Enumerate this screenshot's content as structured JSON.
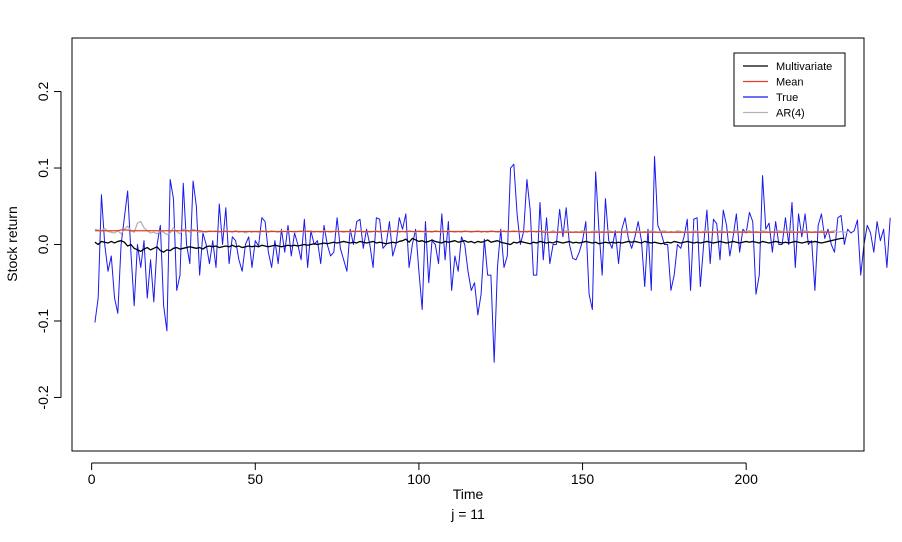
{
  "chart_data": {
    "type": "line",
    "xlabel": "Time",
    "subtitle": "j = 11",
    "ylabel": "Stock return",
    "xlim": [
      -6,
      236
    ],
    "ylim": [
      -0.27,
      0.27
    ],
    "x_ticks": [
      0,
      50,
      100,
      150,
      200
    ],
    "x_tick_labels": [
      "0",
      "50",
      "100",
      "150",
      "200"
    ],
    "y_ticks": [
      -0.2,
      -0.1,
      0.0,
      0.1,
      0.2
    ],
    "y_tick_labels": [
      "-0.2",
      "-0.1",
      "0.0",
      "0.1",
      "0.2"
    ],
    "legend_position": "top-right",
    "colors": {
      "multivariate": "#000000",
      "mean": "#e0402a",
      "true": "#1a1aee",
      "ar4": "#b3b3b3"
    },
    "series": [
      {
        "name": "Multivariate",
        "color": "#000000",
        "x_start": 1,
        "values": [
          0.003,
          0.0,
          0.004,
          0.003,
          0.002,
          0.004,
          0.002,
          0.004,
          0.005,
          0.003,
          -0.002,
          0.0,
          -0.005,
          -0.007,
          -0.009,
          -0.006,
          -0.004,
          -0.007,
          -0.005,
          -0.003,
          -0.008,
          -0.01,
          -0.007,
          -0.008,
          -0.005,
          -0.004,
          -0.006,
          -0.005,
          -0.004,
          -0.003,
          -0.004,
          -0.005,
          -0.004,
          -0.006,
          -0.003,
          -0.002,
          -0.003,
          -0.002,
          -0.004,
          -0.003,
          -0.002,
          -0.003,
          -0.001,
          -0.003,
          -0.002,
          -0.004,
          -0.003,
          -0.002,
          -0.003,
          -0.002,
          -0.003,
          -0.001,
          -0.002,
          -0.003,
          -0.002,
          -0.001,
          -0.002,
          -0.003,
          -0.002,
          -0.001,
          -0.002,
          -0.001,
          -0.002,
          -0.001,
          0.0,
          -0.001,
          0.0,
          0.001,
          0.0,
          0.001,
          0.002,
          0.001,
          0.002,
          0.003,
          0.002,
          0.003,
          0.004,
          0.003,
          0.002,
          0.003,
          0.002,
          0.004,
          0.003,
          0.002,
          0.003,
          0.004,
          0.002,
          0.003,
          0.002,
          0.001,
          0.002,
          0.003,
          0.002,
          0.004,
          0.005,
          0.007,
          0.003,
          0.008,
          0.006,
          0.004,
          0.005,
          0.003,
          0.004,
          0.006,
          0.004,
          0.003,
          0.002,
          0.004,
          0.003,
          0.004,
          0.005,
          0.003,
          0.004,
          0.005,
          0.003,
          0.004,
          0.002,
          0.004,
          0.003,
          0.004,
          0.006,
          0.003,
          0.004,
          0.005,
          0.003,
          0.002,
          0.001,
          0.0,
          0.003,
          0.002,
          0.004,
          0.003,
          0.002,
          0.001,
          0.003,
          0.002,
          0.004,
          0.003,
          0.002,
          0.003,
          0.002,
          0.004,
          0.003,
          0.002,
          0.003,
          0.004,
          0.002,
          0.003,
          0.002,
          0.003,
          0.004,
          0.003,
          0.002,
          0.003,
          0.001,
          0.002,
          0.003,
          0.002,
          0.003,
          0.002,
          0.003,
          0.002,
          0.003,
          0.004,
          0.003,
          0.004,
          0.003,
          0.002,
          0.004,
          0.003,
          0.002,
          0.003,
          0.002,
          0.001,
          0.002,
          0.003,
          0.002,
          0.004,
          0.003,
          0.002,
          0.003,
          0.004,
          0.003,
          0.002,
          0.003,
          0.002,
          0.003,
          0.004,
          0.003,
          0.002,
          0.003,
          0.004,
          0.003,
          0.002,
          0.003,
          0.004,
          0.003,
          0.002,
          0.003,
          0.004,
          0.003,
          0.004,
          0.003,
          0.002,
          0.004,
          0.003,
          0.002,
          0.003,
          0.004,
          0.003,
          0.002,
          0.003,
          0.002,
          0.003,
          0.004,
          0.003,
          0.002,
          0.003,
          0.004,
          0.003,
          0.004,
          0.003,
          0.002,
          0.003,
          0.004,
          0.005,
          0.006,
          0.007,
          0.008,
          0.008
        ]
      },
      {
        "name": "Mean",
        "color": "#e0402a",
        "x_start": 1,
        "values": [
          0.018,
          0.018,
          0.018,
          0.018,
          0.018,
          0.018,
          0.018,
          0.018,
          0.019,
          0.019,
          0.019,
          0.018,
          0.018,
          0.018,
          0.018,
          0.018,
          0.018,
          0.018,
          0.018,
          0.018,
          0.018,
          0.018,
          0.018,
          0.018,
          0.018,
          0.018,
          0.018,
          0.018,
          0.018,
          0.018,
          0.018,
          0.018,
          0.018,
          0.017,
          0.017,
          0.017,
          0.017,
          0.017,
          0.017,
          0.017,
          0.017,
          0.017,
          0.017,
          0.017,
          0.017,
          0.017,
          0.017,
          0.017,
          0.017,
          0.017,
          0.017,
          0.017,
          0.017,
          0.017,
          0.017,
          0.017,
          0.017,
          0.017,
          0.017,
          0.017,
          0.017,
          0.017,
          0.017,
          0.017,
          0.017,
          0.017,
          0.017,
          0.017,
          0.017,
          0.017,
          0.017,
          0.017,
          0.017,
          0.017,
          0.017,
          0.017,
          0.017,
          0.017,
          0.017,
          0.017,
          0.017,
          0.017,
          0.017,
          0.017,
          0.017,
          0.017,
          0.017,
          0.017,
          0.017,
          0.017,
          0.017,
          0.017,
          0.017,
          0.017,
          0.017,
          0.017,
          0.017,
          0.017,
          0.017,
          0.017,
          0.017,
          0.017,
          0.017,
          0.017,
          0.017,
          0.017,
          0.017,
          0.017,
          0.017,
          0.017,
          0.017,
          0.017,
          0.017,
          0.017,
          0.017,
          0.017,
          0.017,
          0.017,
          0.017,
          0.017,
          0.017,
          0.017,
          0.017,
          0.017,
          0.017,
          0.017,
          0.017,
          0.017,
          0.017,
          0.017,
          0.017,
          0.017,
          0.017,
          0.017,
          0.017,
          0.017,
          0.017,
          0.016,
          0.016,
          0.016,
          0.016,
          0.016,
          0.016,
          0.016,
          0.016,
          0.016,
          0.016,
          0.016,
          0.016,
          0.016,
          0.016,
          0.016,
          0.016,
          0.016,
          0.016,
          0.016,
          0.016,
          0.016,
          0.016,
          0.016,
          0.016,
          0.016,
          0.016,
          0.016,
          0.016,
          0.016,
          0.016,
          0.016,
          0.016,
          0.016,
          0.016,
          0.016,
          0.016,
          0.016,
          0.016,
          0.016,
          0.016,
          0.016,
          0.016,
          0.016,
          0.016,
          0.016,
          0.016,
          0.016,
          0.016,
          0.016,
          0.016,
          0.016,
          0.016,
          0.016,
          0.016,
          0.016,
          0.016,
          0.016,
          0.016,
          0.016,
          0.016,
          0.016,
          0.016,
          0.016,
          0.016,
          0.016,
          0.016,
          0.016,
          0.016,
          0.016,
          0.016,
          0.016,
          0.016,
          0.016,
          0.016,
          0.016,
          0.016,
          0.016,
          0.016,
          0.016,
          0.016,
          0.016,
          0.016,
          0.016,
          0.016,
          0.016,
          0.016,
          0.016,
          0.016,
          0.016,
          0.016
        ]
      },
      {
        "name": "True",
        "color": "#1a1aee",
        "x_start": 1,
        "values": [
          -0.102,
          -0.07,
          0.065,
          0.0,
          -0.035,
          -0.015,
          -0.07,
          -0.09,
          0.0,
          0.035,
          0.07,
          -0.01,
          -0.08,
          0.0,
          -0.03,
          0.005,
          -0.07,
          -0.02,
          -0.075,
          0.0,
          0.025,
          -0.08,
          -0.113,
          0.085,
          0.06,
          -0.06,
          -0.04,
          0.08,
          0.0,
          -0.025,
          0.083,
          0.05,
          -0.04,
          0.015,
          0.0,
          -0.025,
          0.005,
          -0.03,
          0.053,
          0.0,
          0.048,
          -0.025,
          0.01,
          0.005,
          -0.02,
          -0.035,
          0.0,
          0.01,
          -0.03,
          0.005,
          -0.002,
          0.035,
          0.03,
          -0.01,
          -0.03,
          0.005,
          -0.025,
          0.02,
          -0.01,
          0.025,
          -0.015,
          0.015,
          0.0,
          -0.02,
          0.033,
          -0.03,
          0.018,
          0.0,
          0.005,
          -0.025,
          0.025,
          0.0,
          -0.015,
          -0.01,
          0.035,
          -0.005,
          -0.02,
          -0.035,
          0.02,
          0.0,
          0.03,
          0.033,
          -0.005,
          0.02,
          0.0,
          -0.03,
          0.035,
          0.033,
          -0.005,
          0.0,
          0.03,
          -0.015,
          0.0,
          0.035,
          0.02,
          0.04,
          -0.03,
          0.0,
          0.02,
          -0.035,
          -0.085,
          0.03,
          -0.05,
          0.005,
          0.0,
          -0.025,
          0.04,
          -0.02,
          0.03,
          -0.06,
          -0.015,
          -0.035,
          0.01,
          0.0,
          -0.035,
          -0.06,
          -0.05,
          -0.092,
          -0.065,
          0.007,
          -0.04,
          -0.04,
          -0.154,
          -0.03,
          0.02,
          -0.03,
          -0.015,
          0.1,
          0.105,
          0.04,
          0.0,
          0.017,
          0.085,
          0.045,
          -0.04,
          -0.04,
          0.055,
          -0.02,
          0.035,
          -0.025,
          0.0,
          0.0,
          0.046,
          0.01,
          0.048,
          0.0,
          -0.018,
          -0.02,
          -0.01,
          0.005,
          0.03,
          -0.065,
          -0.085,
          0.095,
          0.02,
          -0.04,
          0.06,
          0.005,
          -0.005,
          0.018,
          -0.025,
          0.02,
          0.035,
          0.008,
          -0.005,
          0.01,
          0.03,
          0.005,
          -0.055,
          0.02,
          -0.06,
          0.115,
          0.025,
          0.015,
          0.0,
          0.0,
          -0.06,
          -0.04,
          0.0,
          -0.005,
          0.01,
          0.033,
          -0.06,
          0.033,
          0.035,
          -0.055,
          0.0,
          0.045,
          -0.025,
          0.033,
          0.027,
          -0.02,
          0.045,
          0.025,
          -0.015,
          0.01,
          0.04,
          -0.01,
          0.02,
          0.015,
          0.042,
          0.03,
          -0.065,
          -0.04,
          0.09,
          0.02,
          0.028,
          -0.01,
          0.03,
          0.0,
          0.0,
          0.035,
          0.0,
          0.055,
          -0.03,
          0.04,
          0.01,
          0.04,
          0.0,
          0.005,
          -0.06,
          0.025,
          0.04,
          0.008,
          0.02,
          0.0,
          -0.01,
          0.035,
          0.038,
          0.0,
          0.02,
          0.015,
          0.018,
          0.032,
          -0.04,
          0.0,
          0.025,
          0.015,
          -0.01,
          0.03,
          0.005,
          0.02,
          -0.03,
          0.035
        ]
      },
      {
        "name": "AR(4)",
        "color": "#b3b3b3",
        "x_start": 1,
        "values": [
          0.02,
          0.019,
          0.018,
          0.021,
          0.017,
          0.016,
          0.015,
          0.018,
          0.014,
          0.02,
          0.024,
          0.018,
          0.016,
          0.028,
          0.03,
          0.022,
          0.018,
          0.015,
          0.016,
          0.014,
          0.018,
          0.016,
          0.013,
          0.015,
          0.022,
          0.017,
          0.014,
          0.02,
          0.019,
          0.016,
          0.02,
          0.018,
          0.016,
          0.017,
          0.016,
          0.018,
          0.017,
          0.018,
          0.016,
          0.017,
          0.018,
          0.017,
          0.016,
          0.018,
          0.016,
          0.017,
          0.015,
          0.017,
          0.016,
          0.017,
          0.016,
          0.018,
          0.017,
          0.016,
          0.018,
          0.017,
          0.016,
          0.018,
          0.017,
          0.018,
          0.017,
          0.016,
          0.017,
          0.018,
          0.016,
          0.018,
          0.017,
          0.016,
          0.017,
          0.016,
          0.018,
          0.017,
          0.016,
          0.017,
          0.018,
          0.017,
          0.016,
          0.017,
          0.016,
          0.018,
          0.017,
          0.018,
          0.016,
          0.017,
          0.016,
          0.017,
          0.018,
          0.016,
          0.017,
          0.018,
          0.016,
          0.017,
          0.018,
          0.016,
          0.017,
          0.016,
          0.018,
          0.017,
          0.016,
          0.018,
          0.017,
          0.016,
          0.017,
          0.016,
          0.018,
          0.017,
          0.016,
          0.017,
          0.018,
          0.017,
          0.016,
          0.017,
          0.016,
          0.018,
          0.017,
          0.016,
          0.017,
          0.018,
          0.016,
          0.017,
          0.016,
          0.018,
          0.017,
          0.016,
          0.017,
          0.018,
          0.016,
          0.017,
          0.018,
          0.017,
          0.016,
          0.017,
          0.016,
          0.018,
          0.017,
          0.016,
          0.017,
          0.018,
          0.017,
          0.016,
          0.018,
          0.016,
          0.017,
          0.016,
          0.018,
          0.017,
          0.016,
          0.017,
          0.016,
          0.018,
          0.017,
          0.016,
          0.017,
          0.018,
          0.016,
          0.017,
          0.016,
          0.018,
          0.017,
          0.016,
          0.017,
          0.016,
          0.018,
          0.017,
          0.016,
          0.017,
          0.018,
          0.016,
          0.017,
          0.016,
          0.018,
          0.017,
          0.016,
          0.017,
          0.018,
          0.016,
          0.017,
          0.016,
          0.018,
          0.017,
          0.016,
          0.017,
          0.016,
          0.018,
          0.017,
          0.016,
          0.017,
          0.018,
          0.016,
          0.017,
          0.016,
          0.018,
          0.017,
          0.016,
          0.017,
          0.016,
          0.018,
          0.017,
          0.016,
          0.017,
          0.018,
          0.016,
          0.017,
          0.016,
          0.018,
          0.017,
          0.016,
          0.017,
          0.016,
          0.018,
          0.017,
          0.016,
          0.017,
          0.018,
          0.016,
          0.017,
          0.016,
          0.018,
          0.017,
          0.016,
          0.017,
          0.016,
          0.018,
          0.017,
          0.016,
          0.017,
          0.018,
          0.016,
          0.017,
          0.016,
          0.016
        ]
      }
    ]
  }
}
